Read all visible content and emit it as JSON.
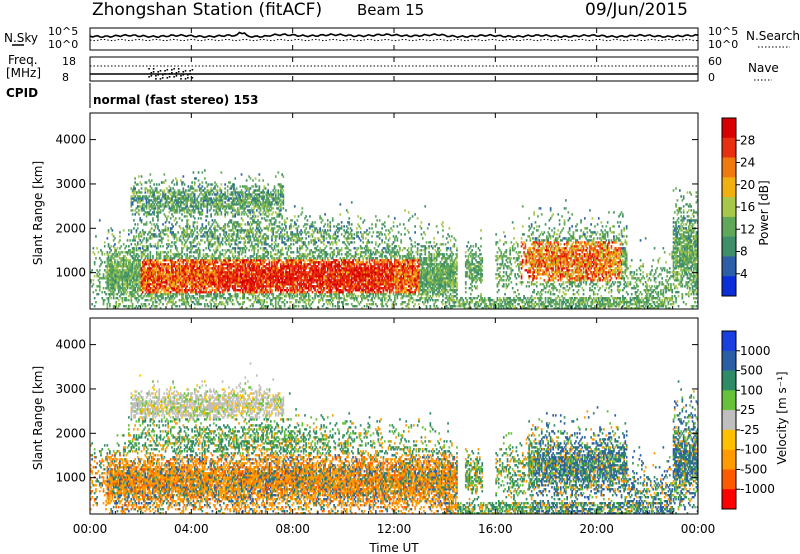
{
  "header": {
    "title": "Zhongshan Station (fitACF)",
    "beam": "Beam 15",
    "date": "09/Jun/2015"
  },
  "colors": {
    "power": [
      "#0a2fd8",
      "#2d5fa8",
      "#3f8e6a",
      "#5fa85a",
      "#a8c84a",
      "#f0b010",
      "#f07a10",
      "#e83010",
      "#d80000"
    ],
    "velocity": [
      "#ff0000",
      "#ff5a00",
      "#ff9a00",
      "#ffc000",
      "#bfbfbf",
      "#66c23a",
      "#2f8a66",
      "#2a5fa6",
      "#1a3fe0"
    ],
    "ground_scatter": "#bfbfbf"
  },
  "top_panel": {
    "left_label_1": "N.Sky",
    "left_ticks_1": [
      "10^5",
      "10^0"
    ],
    "right_label_1": "N.Search",
    "right_ticks_1": [
      "10^5",
      "10^0"
    ],
    "left_label_2": "Freq.",
    "left_unit_2": "[MHz]",
    "left_ticks_2": [
      "18",
      "8"
    ],
    "right_label_2": "Nave",
    "right_ticks_2": [
      "60",
      "0"
    ],
    "cpid_label": "CPID",
    "cpid_text": "normal (fast stereo) 153"
  },
  "chart_data": [
    {
      "type": "heatmap",
      "name": "power",
      "ylabel": "Slant Range [km]",
      "ylim": [
        180,
        4600
      ],
      "yticks": [
        "1000",
        "2000",
        "3000",
        "4000"
      ],
      "xlim": [
        0,
        24
      ],
      "colorbar_label": "Power [dB]",
      "colorbar_ticks": [
        "4",
        "8",
        "12",
        "16",
        "20",
        "24",
        "28"
      ],
      "colorbar_range": [
        0,
        32
      ]
    },
    {
      "type": "heatmap",
      "name": "velocity",
      "ylabel": "Slant Range [km]",
      "ylim": [
        180,
        4600
      ],
      "yticks": [
        "1000",
        "2000",
        "3000",
        "4000"
      ],
      "xlim": [
        0,
        24
      ],
      "xlabel": "Time UT",
      "xticks": [
        "00:00",
        "04:00",
        "08:00",
        "12:00",
        "16:00",
        "20:00",
        "00:00"
      ],
      "colorbar_label": "Velocity [m s⁻¹]",
      "colorbar_ticks": [
        "1000",
        "500",
        "100",
        "25",
        "-25",
        "-100",
        "-500",
        "-1000"
      ]
    }
  ]
}
